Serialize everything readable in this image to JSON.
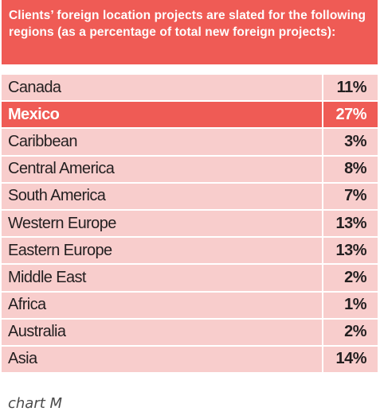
{
  "chart_data": {
    "type": "table",
    "title": "Clients’ foreign location projects are slated for the following regions (as a percentage of total new foreign projects):",
    "categories": [
      "Canada",
      "Mexico",
      "Caribbean",
      "Central America",
      "South America",
      "Western Europe",
      "Eastern Europe",
      "Middle East",
      "Africa",
      "Australia",
      "Asia"
    ],
    "values": [
      11,
      27,
      3,
      8,
      7,
      13,
      13,
      2,
      1,
      2,
      14
    ],
    "value_labels": [
      "11%",
      "27%",
      "3%",
      "8%",
      "7%",
      "13%",
      "13%",
      "2%",
      "1%",
      "2%",
      "14%"
    ],
    "unit": "%",
    "highlighted_category": "Mexico",
    "caption": "chart M"
  },
  "colors": {
    "accent": "#ef5b55",
    "row_fill": "#f8cdcc",
    "text": "#231f20"
  }
}
